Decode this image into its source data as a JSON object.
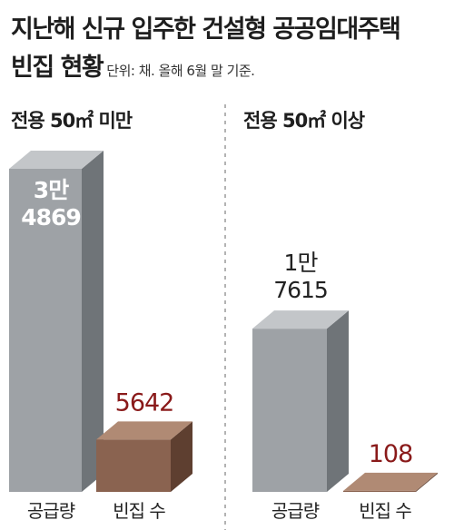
{
  "title": {
    "line1": "지난해 신규 입주한 건설형 공공임대주택",
    "line2": "빈집 현황",
    "unit_note": "단위: 채. 올해 6월 말 기준."
  },
  "colors": {
    "supply_front": "#9ea2a6",
    "supply_side": "#6f7478",
    "supply_top": "#c3c6c9",
    "vacant_front": "#8a6350",
    "vacant_side": "#5e3f30",
    "vacant_top": "#b08a74",
    "vacant_label": "#8a1a1a",
    "divider": "#9a9a9a"
  },
  "chart_data": [
    {
      "type": "bar",
      "title": "전용 50㎡ 미만",
      "categories": [
        "공급량",
        "빈집 수"
      ],
      "values": [
        34869,
        5642
      ],
      "value_labels": [
        [
          "3만",
          "4869"
        ],
        [
          "5642"
        ]
      ]
    },
    {
      "type": "bar",
      "title": "전용 50㎡ 이상",
      "categories": [
        "공급량",
        "빈집 수"
      ],
      "values": [
        17615,
        108
      ],
      "value_labels": [
        [
          "1만",
          "7615"
        ],
        [
          "108"
        ]
      ]
    }
  ]
}
